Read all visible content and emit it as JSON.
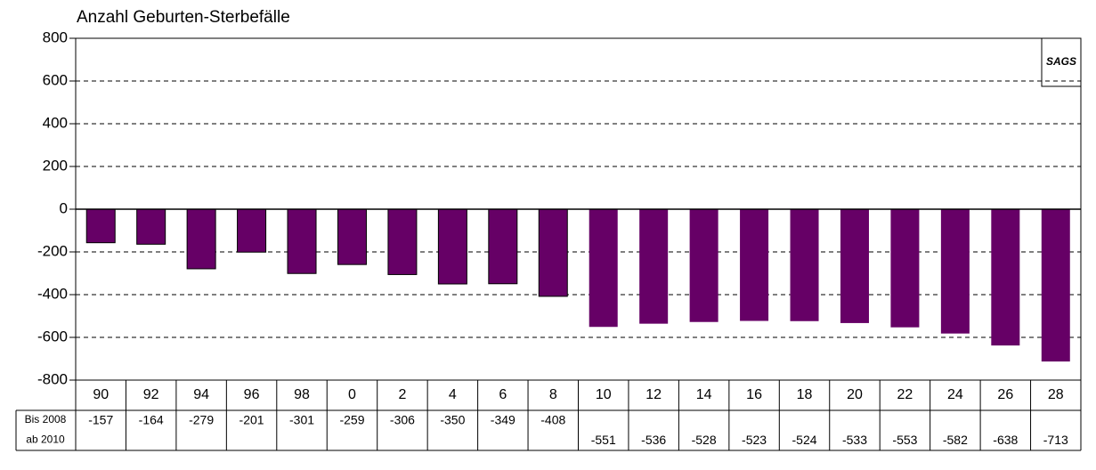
{
  "chart_data": {
    "type": "bar",
    "title": "Anzahl Geburten-Sterbefälle",
    "logo": "SAGS",
    "categories": [
      "90",
      "92",
      "94",
      "96",
      "98",
      "0",
      "2",
      "4",
      "6",
      "8",
      "10",
      "12",
      "14",
      "16",
      "18",
      "20",
      "22",
      "24",
      "26",
      "28"
    ],
    "series": [
      {
        "name": "Bis 2008",
        "color": "#660066",
        "values": [
          -157,
          -164,
          -279,
          -201,
          -301,
          -259,
          -306,
          -350,
          -349,
          -408,
          null,
          null,
          null,
          null,
          null,
          null,
          null,
          null,
          null,
          null
        ]
      },
      {
        "name": "ab 2010",
        "color": "#660066",
        "values": [
          null,
          null,
          null,
          null,
          null,
          null,
          null,
          null,
          null,
          null,
          -551,
          -536,
          -528,
          -523,
          -524,
          -533,
          -553,
          -582,
          -638,
          -713
        ]
      }
    ],
    "ylim": [
      -800,
      800
    ],
    "yticks": [
      800,
      600,
      400,
      200,
      0,
      -200,
      -400,
      -600,
      -800
    ],
    "grid": true
  }
}
